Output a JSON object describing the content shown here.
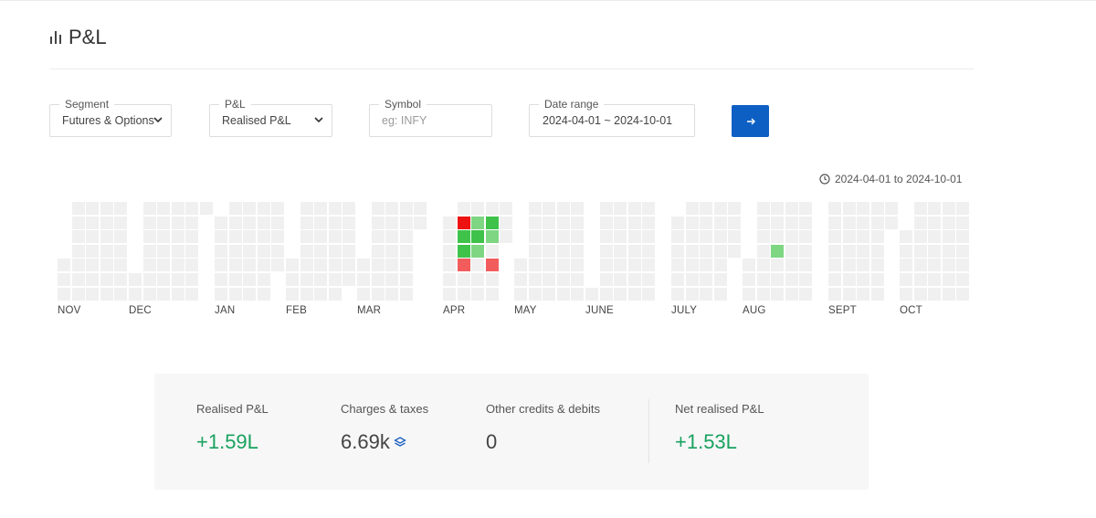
{
  "header": {
    "title": "P&L"
  },
  "filters": {
    "segment": {
      "label": "Segment",
      "value": "Futures & Options"
    },
    "pnl": {
      "label": "P&L",
      "value": "Realised P&L"
    },
    "symbol": {
      "label": "Symbol",
      "placeholder": "eg: INFY"
    },
    "date_range": {
      "label": "Date range",
      "value": "2024-04-01 ~ 2024-10-01"
    },
    "submit_icon": "arrow-right-icon"
  },
  "heatmap": {
    "range_text": "2024-04-01 to 2024-10-01",
    "range_icon": "clock-icon",
    "months": [
      "NOV",
      "DEC",
      "JAN",
      "FEB",
      "MAR",
      "APR",
      "MAY",
      "JUNE",
      "JULY",
      "AUG",
      "SEPT",
      "OCT"
    ],
    "empty_color": "#f0f0f0",
    "colored_days": [
      {
        "month": "APR",
        "week": 1,
        "weekday": 1,
        "color": "#ee1111"
      },
      {
        "month": "APR",
        "week": 2,
        "weekday": 1,
        "color": "#7ed683"
      },
      {
        "month": "APR",
        "week": 3,
        "weekday": 1,
        "color": "#3fc24a"
      },
      {
        "month": "APR",
        "week": 1,
        "weekday": 2,
        "color": "#3fc24a"
      },
      {
        "month": "APR",
        "week": 2,
        "weekday": 2,
        "color": "#3fc24a"
      },
      {
        "month": "APR",
        "week": 3,
        "weekday": 2,
        "color": "#7ed683"
      },
      {
        "month": "APR",
        "week": 1,
        "weekday": 3,
        "color": "#3fc24a"
      },
      {
        "month": "APR",
        "week": 2,
        "weekday": 3,
        "color": "#7ed683"
      },
      {
        "month": "APR",
        "week": 1,
        "weekday": 4,
        "color": "#f25c5c"
      },
      {
        "month": "APR",
        "week": 3,
        "weekday": 4,
        "color": "#f25c5c"
      },
      {
        "month": "AUG",
        "week": 2,
        "weekday": 3,
        "color": "#7ed683"
      }
    ]
  },
  "summary": {
    "realised": {
      "label": "Realised P&L",
      "value": "+1.59L"
    },
    "charges": {
      "label": "Charges & taxes",
      "value": "6.69k",
      "icon": "layers-icon"
    },
    "other": {
      "label": "Other credits & debits",
      "value": "0"
    },
    "net": {
      "label": "Net realised P&L",
      "value": "+1.53L"
    },
    "positive_color": "#18a25f"
  }
}
